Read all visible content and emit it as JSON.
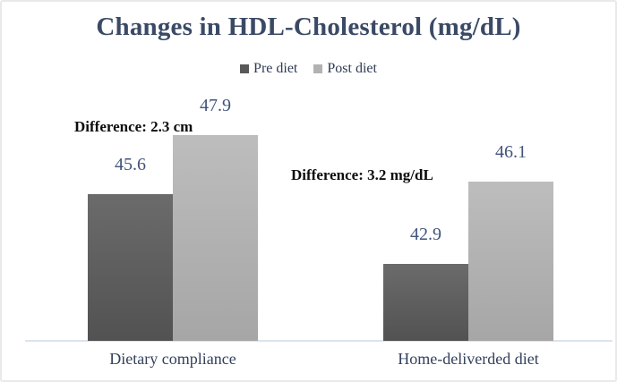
{
  "chart_data": {
    "type": "bar",
    "title": "Changes in HDL-Cholesterol (mg/dL)",
    "categories": [
      "Dietary compliance",
      "Home-deliverded diet"
    ],
    "series": [
      {
        "name": "Pre diet",
        "color": "#595959",
        "values": [
          45.6,
          42.9
        ]
      },
      {
        "name": "Post diet",
        "color": "#b2b2b2",
        "values": [
          47.9,
          46.1
        ]
      }
    ],
    "annotations": [
      {
        "text": "Difference: 2.3 cm",
        "group": "Dietary compliance"
      },
      {
        "text": "Difference: 3.2 mg/dL",
        "group": "Home-deliverded diet"
      }
    ],
    "ylim": [
      39.9,
      52
    ],
    "legend_position": "top-center",
    "grid": false,
    "x_baseline_shown": true,
    "ylabel": "",
    "xlabel": ""
  },
  "colors": {
    "title_text": "#3a4a66",
    "value_label_text": "#41537a",
    "category_label_text": "#33415c",
    "annotation_text": "#0d0d0d",
    "pre_diet_bar": "#595959",
    "post_diet_bar": "#b2b2b2",
    "axis_line": "#dbe3f0",
    "card_border": "#e9e9e9",
    "background": "#ffffff"
  }
}
